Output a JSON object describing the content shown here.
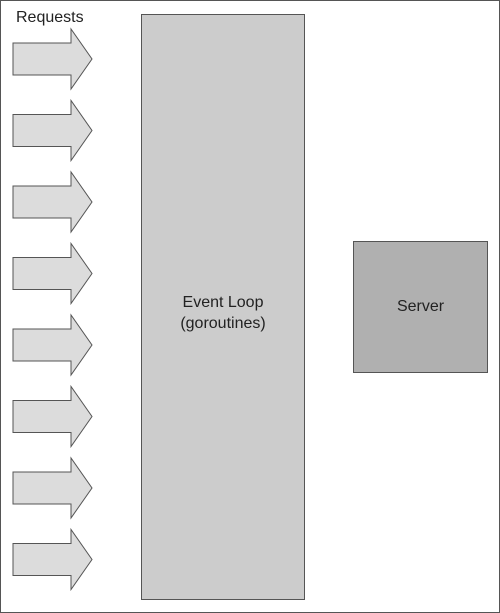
{
  "requests_label": "Requests",
  "request_arrow_count": 8,
  "event_loop": {
    "line1": "Event Loop",
    "line2": "(goroutines)"
  },
  "server": {
    "label": "Server"
  },
  "colors": {
    "arrow_fill": "#dcdcdc",
    "event_loop_fill": "#cccccc",
    "server_fill": "#b0b0b0",
    "stroke": "#555555",
    "text": "#222222"
  }
}
